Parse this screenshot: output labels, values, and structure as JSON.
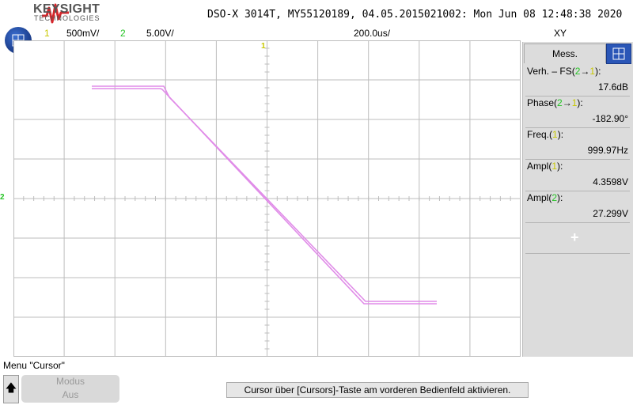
{
  "header": {
    "brand": "KEYSIGHT",
    "brand_sub": "TECHNOLOGIES",
    "device_info": "DSO-X 3014T, MY55120189, 04.05.2015021002: Mon Jun 08 12:48:38 2020"
  },
  "settings": {
    "ch1_label": "1",
    "ch1_scale": "500mV/",
    "ch2_label": "2",
    "ch2_scale": "5.00V/",
    "timebase": "200.0us/",
    "mode": "XY"
  },
  "markers": {
    "ch1": "1",
    "ch2": "2"
  },
  "side_panel": {
    "tab_label": "Mess.",
    "measurements": [
      {
        "label_pre": "Verh. – FS(",
        "label_a": "2",
        "arrow": "→",
        "label_b": "1",
        "label_post": "):",
        "value": "17.6dB"
      },
      {
        "label_pre": "Phase(",
        "label_a": "2",
        "arrow": "→",
        "label_b": "1",
        "label_post": "):",
        "value": "-182.90°"
      },
      {
        "label_pre": "Freq.(",
        "label_b": "1",
        "label_post": "):",
        "value": "999.97Hz"
      },
      {
        "label_pre": "Ampl(",
        "label_b": "1",
        "label_post": "):",
        "value": "4.3598V"
      },
      {
        "label_pre": "Ampl(",
        "label_a": "2",
        "label_post": "):",
        "value": "27.299V"
      }
    ],
    "add_symbol": "+"
  },
  "bottom": {
    "menu_title": "Menu \"Cursor\"",
    "softkey_line1": "Modus",
    "softkey_line2": "Aus",
    "message": "Cursor über [Cursors]-Taste am vorderen Bedienfeld aktivieren."
  },
  "colors": {
    "ch1": "#c8c800",
    "ch2": "#25c425",
    "trace": "#e08ce8",
    "grid": "#bdbdbd"
  }
}
